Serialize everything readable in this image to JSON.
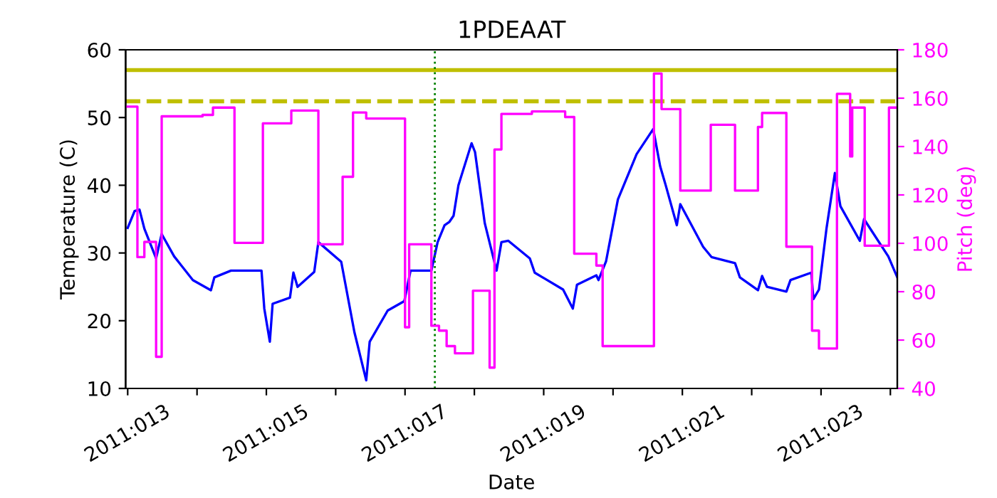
{
  "chart_data": {
    "type": "line",
    "title": "1PDEAAT",
    "xlabel": "Date",
    "ylabel": "Temperature (C)",
    "y2label": "Pitch (deg)",
    "xlim": [
      "2011-01-12T23:17",
      "2011-01-24T02:24"
    ],
    "xticks": [
      {
        "value": "2011-01-13",
        "label": "2011:013"
      },
      {
        "value": "2011-01-14",
        "label": null
      },
      {
        "value": "2011-01-15",
        "label": "2011:015"
      },
      {
        "value": "2011-01-16",
        "label": null
      },
      {
        "value": "2011-01-17",
        "label": "2011:017"
      },
      {
        "value": "2011-01-18",
        "label": null
      },
      {
        "value": "2011-01-19",
        "label": "2011:019"
      },
      {
        "value": "2011-01-20",
        "label": null
      },
      {
        "value": "2011-01-21",
        "label": "2011:021"
      },
      {
        "value": "2011-01-22",
        "label": null
      },
      {
        "value": "2011-01-23",
        "label": "2011:023"
      },
      {
        "value": "2011-01-24",
        "label": null
      }
    ],
    "ylim": [
      10,
      60
    ],
    "yticks": [
      10,
      20,
      30,
      40,
      50,
      60
    ],
    "y2lim": [
      40,
      180
    ],
    "y2ticks": [
      40,
      60,
      80,
      100,
      120,
      140,
      160,
      180
    ],
    "grid": false,
    "legend": false,
    "series": [
      {
        "color": "#0000ff",
        "x": [
          "2011-01-13T00:00",
          "2011-01-13T02:24",
          "2011-01-13T04:05",
          "2011-01-13T05:46",
          "2011-01-13T09:50",
          "2011-01-13T11:46",
          "2011-01-13T16:05",
          "2011-01-13T22:34",
          "2011-01-14T04:48",
          "2011-01-14T06:00",
          "2011-01-14T11:46",
          "2011-01-14T22:19",
          "2011-01-14T23:17",
          "2011-01-15T01:12",
          "2011-01-15T02:10",
          "2011-01-15T08:10",
          "2011-01-15T09:22",
          "2011-01-15T10:48",
          "2011-01-15T16:34",
          "2011-01-15T18:00",
          "2011-01-16T01:55",
          "2011-01-16T06:29",
          "2011-01-16T10:34",
          "2011-01-16T11:46",
          "2011-01-16T18:00",
          "2011-01-16T23:46",
          "2011-01-17T01:55",
          "2011-01-17T09:07",
          "2011-01-17T11:17",
          "2011-01-17T13:41",
          "2011-01-17T15:22",
          "2011-01-17T16:48",
          "2011-01-17T18:29",
          "2011-01-17T23:02",
          "2011-01-18T00:14",
          "2011-01-18T03:36",
          "2011-01-18T07:41",
          "2011-01-18T09:22",
          "2011-01-18T11:46",
          "2011-01-18T19:12",
          "2011-01-18T20:53",
          "2011-01-19T06:43",
          "2011-01-19T10:05",
          "2011-01-19T11:31",
          "2011-01-19T18:14",
          "2011-01-19T18:58",
          "2011-01-19T21:36",
          "2011-01-20T01:41",
          "2011-01-20T08:10",
          "2011-01-20T13:55",
          "2011-01-20T16:19",
          "2011-01-20T18:14",
          "2011-01-20T22:05",
          "2011-01-20T23:17",
          "2011-01-21T01:26",
          "2011-01-21T07:12",
          "2011-01-21T10:05",
          "2011-01-21T18:14",
          "2011-01-21T19:55",
          "2011-01-22T02:10",
          "2011-01-22T03:36",
          "2011-01-22T05:17",
          "2011-01-22T12:00",
          "2011-01-22T13:26",
          "2011-01-22T20:38",
          "2011-01-22T21:22",
          "2011-01-22T23:17",
          "2011-01-23T01:55",
          "2011-01-23T04:48",
          "2011-01-23T06:43",
          "2011-01-23T13:26",
          "2011-01-23T14:53",
          "2011-01-23T23:17",
          "2011-01-24T02:24"
        ],
        "values": [
          33.7,
          36.2,
          36.4,
          33.6,
          29.2,
          32.8,
          29.5,
          26.0,
          24.5,
          26.4,
          27.4,
          27.4,
          21.8,
          16.9,
          22.5,
          23.4,
          27.1,
          25.0,
          27.2,
          31.6,
          28.7,
          18.3,
          11.2,
          16.9,
          21.5,
          22.9,
          27.4,
          27.4,
          31.6,
          34.1,
          34.6,
          35.5,
          40.0,
          46.2,
          44.9,
          34.4,
          27.4,
          31.6,
          31.8,
          29.2,
          27.1,
          24.6,
          21.8,
          25.3,
          26.7,
          26.0,
          28.8,
          37.9,
          44.6,
          48.3,
          42.8,
          40.0,
          34.1,
          37.2,
          35.5,
          30.9,
          29.4,
          28.5,
          26.4,
          24.5,
          26.6,
          25.0,
          24.3,
          26.0,
          27.1,
          23.2,
          24.6,
          33.7,
          41.8,
          36.9,
          31.8,
          35.0,
          29.5,
          26.4
        ]
      },
      {
        "type": "step",
        "axis": "y2",
        "color": "#ff00ff",
        "x": [
          "2011-01-12T23:31",
          "2011-01-13T03:22",
          "2011-01-13T05:46",
          "2011-01-13T09:50",
          "2011-01-13T11:46",
          "2011-01-14T01:55",
          "2011-01-14T05:31",
          "2011-01-14T12:58",
          "2011-01-14T22:48",
          "2011-01-15T08:38",
          "2011-01-15T18:00",
          "2011-01-16T02:24",
          "2011-01-16T06:00",
          "2011-01-16T10:34",
          "2011-01-17T00:00",
          "2011-01-17T01:26",
          "2011-01-17T09:07",
          "2011-01-17T11:46",
          "2011-01-17T14:24",
          "2011-01-17T17:17",
          "2011-01-17T23:31",
          "2011-01-18T05:17",
          "2011-01-18T06:58",
          "2011-01-18T09:22",
          "2011-01-18T19:55",
          "2011-01-19T07:26",
          "2011-01-19T10:34",
          "2011-01-19T18:14",
          "2011-01-19T20:24",
          "2011-01-20T14:10",
          "2011-01-20T16:48",
          "2011-01-20T23:17",
          "2011-01-21T09:50",
          "2011-01-21T18:14",
          "2011-01-22T02:10",
          "2011-01-22T03:36",
          "2011-01-22T12:00",
          "2011-01-22T20:53",
          "2011-01-22T23:17",
          "2011-01-23T05:31",
          "2011-01-23T10:05",
          "2011-01-23T10:48",
          "2011-01-23T15:07",
          "2011-01-23T23:31",
          "2011-01-24T02:24"
        ],
        "values": [
          156.5,
          94.3,
          100.6,
          53.1,
          152.5,
          153.1,
          156.1,
          100.2,
          149.6,
          154.9,
          99.6,
          127.5,
          154.1,
          151.6,
          65.3,
          99.6,
          65.9,
          63.9,
          57.5,
          54.5,
          80.4,
          48.6,
          138.8,
          153.5,
          154.5,
          152.2,
          95.7,
          90.8,
          57.5,
          170.2,
          155.5,
          121.8,
          149.0,
          121.8,
          148.1,
          153.9,
          98.6,
          63.9,
          56.5,
          161.8,
          135.9,
          156.1,
          99.0,
          156.1,
          156.1
        ]
      }
    ],
    "ref_lines": [
      {
        "axis": "y",
        "value": 57,
        "color": "#bfbf00",
        "line_style": "solid"
      },
      {
        "axis": "y",
        "value": 52.4,
        "color": "#bfbf00",
        "line_style": "dashed"
      },
      {
        "axis": "x",
        "value": "2011-01-17T10:19",
        "color": "#008000",
        "line_style": "dotted"
      }
    ]
  }
}
